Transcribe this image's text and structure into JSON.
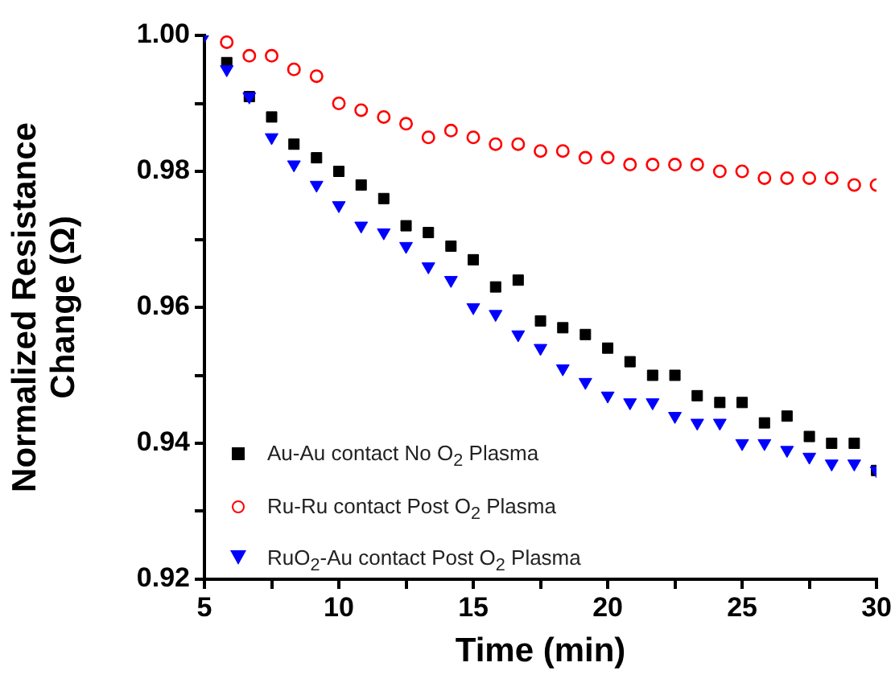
{
  "chart_data": {
    "type": "scatter",
    "xlabel": "Time (min)",
    "ylabel": "Normalized Resistance Change (Ω)",
    "xlim": [
      5,
      30
    ],
    "xticks": [
      5,
      {
        "value": 7.5,
        "label": null
      },
      10,
      {
        "value": 12.5,
        "label": null
      },
      15,
      {
        "value": 17.5,
        "label": null
      },
      20,
      {
        "value": 22.5,
        "label": null
      },
      25,
      {
        "value": 27.5,
        "label": null
      },
      30
    ],
    "ylim": [
      0.92,
      1.0
    ],
    "yticks": [
      0.92,
      {
        "value": 0.93,
        "label": null
      },
      0.94,
      {
        "value": 0.95,
        "label": null
      },
      0.96,
      {
        "value": 0.97,
        "label": null
      },
      0.98,
      {
        "value": 0.99,
        "label": null
      },
      {
        "value": 1.0,
        "label": "1.00"
      }
    ],
    "grid": false,
    "legend": "bottom left",
    "series": [
      {
        "name": "Au-Au contact No O$_{2}$ Plasma",
        "color": "#000000",
        "marker": "square",
        "x": [
          5.83,
          6.67,
          7.5,
          8.33,
          9.17,
          10,
          10.83,
          11.67,
          12.5,
          13.33,
          14.17,
          15,
          15.83,
          16.67,
          17.5,
          18.33,
          19.17,
          20,
          20.83,
          21.67,
          22.5,
          23.33,
          24.17,
          25,
          25.83,
          26.67,
          27.5,
          28.33,
          29.17,
          30
        ],
        "values": [
          0.996,
          0.991,
          0.988,
          0.984,
          0.982,
          0.98,
          0.978,
          0.976,
          0.972,
          0.971,
          0.969,
          0.967,
          0.963,
          0.964,
          0.958,
          0.957,
          0.956,
          0.954,
          0.952,
          0.95,
          0.95,
          0.947,
          0.946,
          0.946,
          0.943,
          0.944,
          0.941,
          0.94,
          0.94,
          0.936
        ]
      },
      {
        "name": "Ru-Ru contact Post O$_{2}$ Plasma",
        "color": "#ff0000",
        "marker": "circle",
        "x": [
          5.83,
          6.67,
          7.5,
          8.33,
          9.17,
          10,
          10.83,
          11.67,
          12.5,
          13.33,
          14.17,
          15,
          15.83,
          16.67,
          17.5,
          18.33,
          19.17,
          20,
          20.83,
          21.67,
          22.5,
          23.33,
          24.17,
          25,
          25.83,
          26.67,
          27.5,
          28.33,
          29.17,
          30
        ],
        "values": [
          0.999,
          0.997,
          0.997,
          0.995,
          0.994,
          0.99,
          0.989,
          0.988,
          0.987,
          0.985,
          0.986,
          0.985,
          0.984,
          0.984,
          0.983,
          0.983,
          0.982,
          0.982,
          0.981,
          0.981,
          0.981,
          0.981,
          0.98,
          0.98,
          0.979,
          0.979,
          0.979,
          0.979,
          0.978,
          0.978
        ]
      },
      {
        "name": "RuO$_{2}$-Au contact Post O$_{2}$ Plasma",
        "color": "#0000ff",
        "marker": "triangle",
        "x": [
          5,
          5.83,
          6.67,
          7.5,
          8.33,
          9.17,
          10,
          10.83,
          11.67,
          12.5,
          13.33,
          14.17,
          15,
          15.83,
          16.67,
          17.5,
          18.33,
          19.17,
          20,
          20.83,
          21.67,
          22.5,
          23.33,
          24.17,
          25,
          25.83,
          26.67,
          27.5,
          28.33,
          29.17,
          30
        ],
        "values": [
          1.0,
          0.995,
          0.991,
          0.985,
          0.981,
          0.978,
          0.975,
          0.972,
          0.971,
          0.969,
          0.966,
          0.964,
          0.96,
          0.959,
          0.956,
          0.954,
          0.951,
          0.949,
          0.947,
          0.946,
          0.946,
          0.944,
          0.943,
          0.943,
          0.94,
          0.94,
          0.939,
          0.938,
          0.937,
          0.937,
          0.936
        ]
      }
    ]
  }
}
